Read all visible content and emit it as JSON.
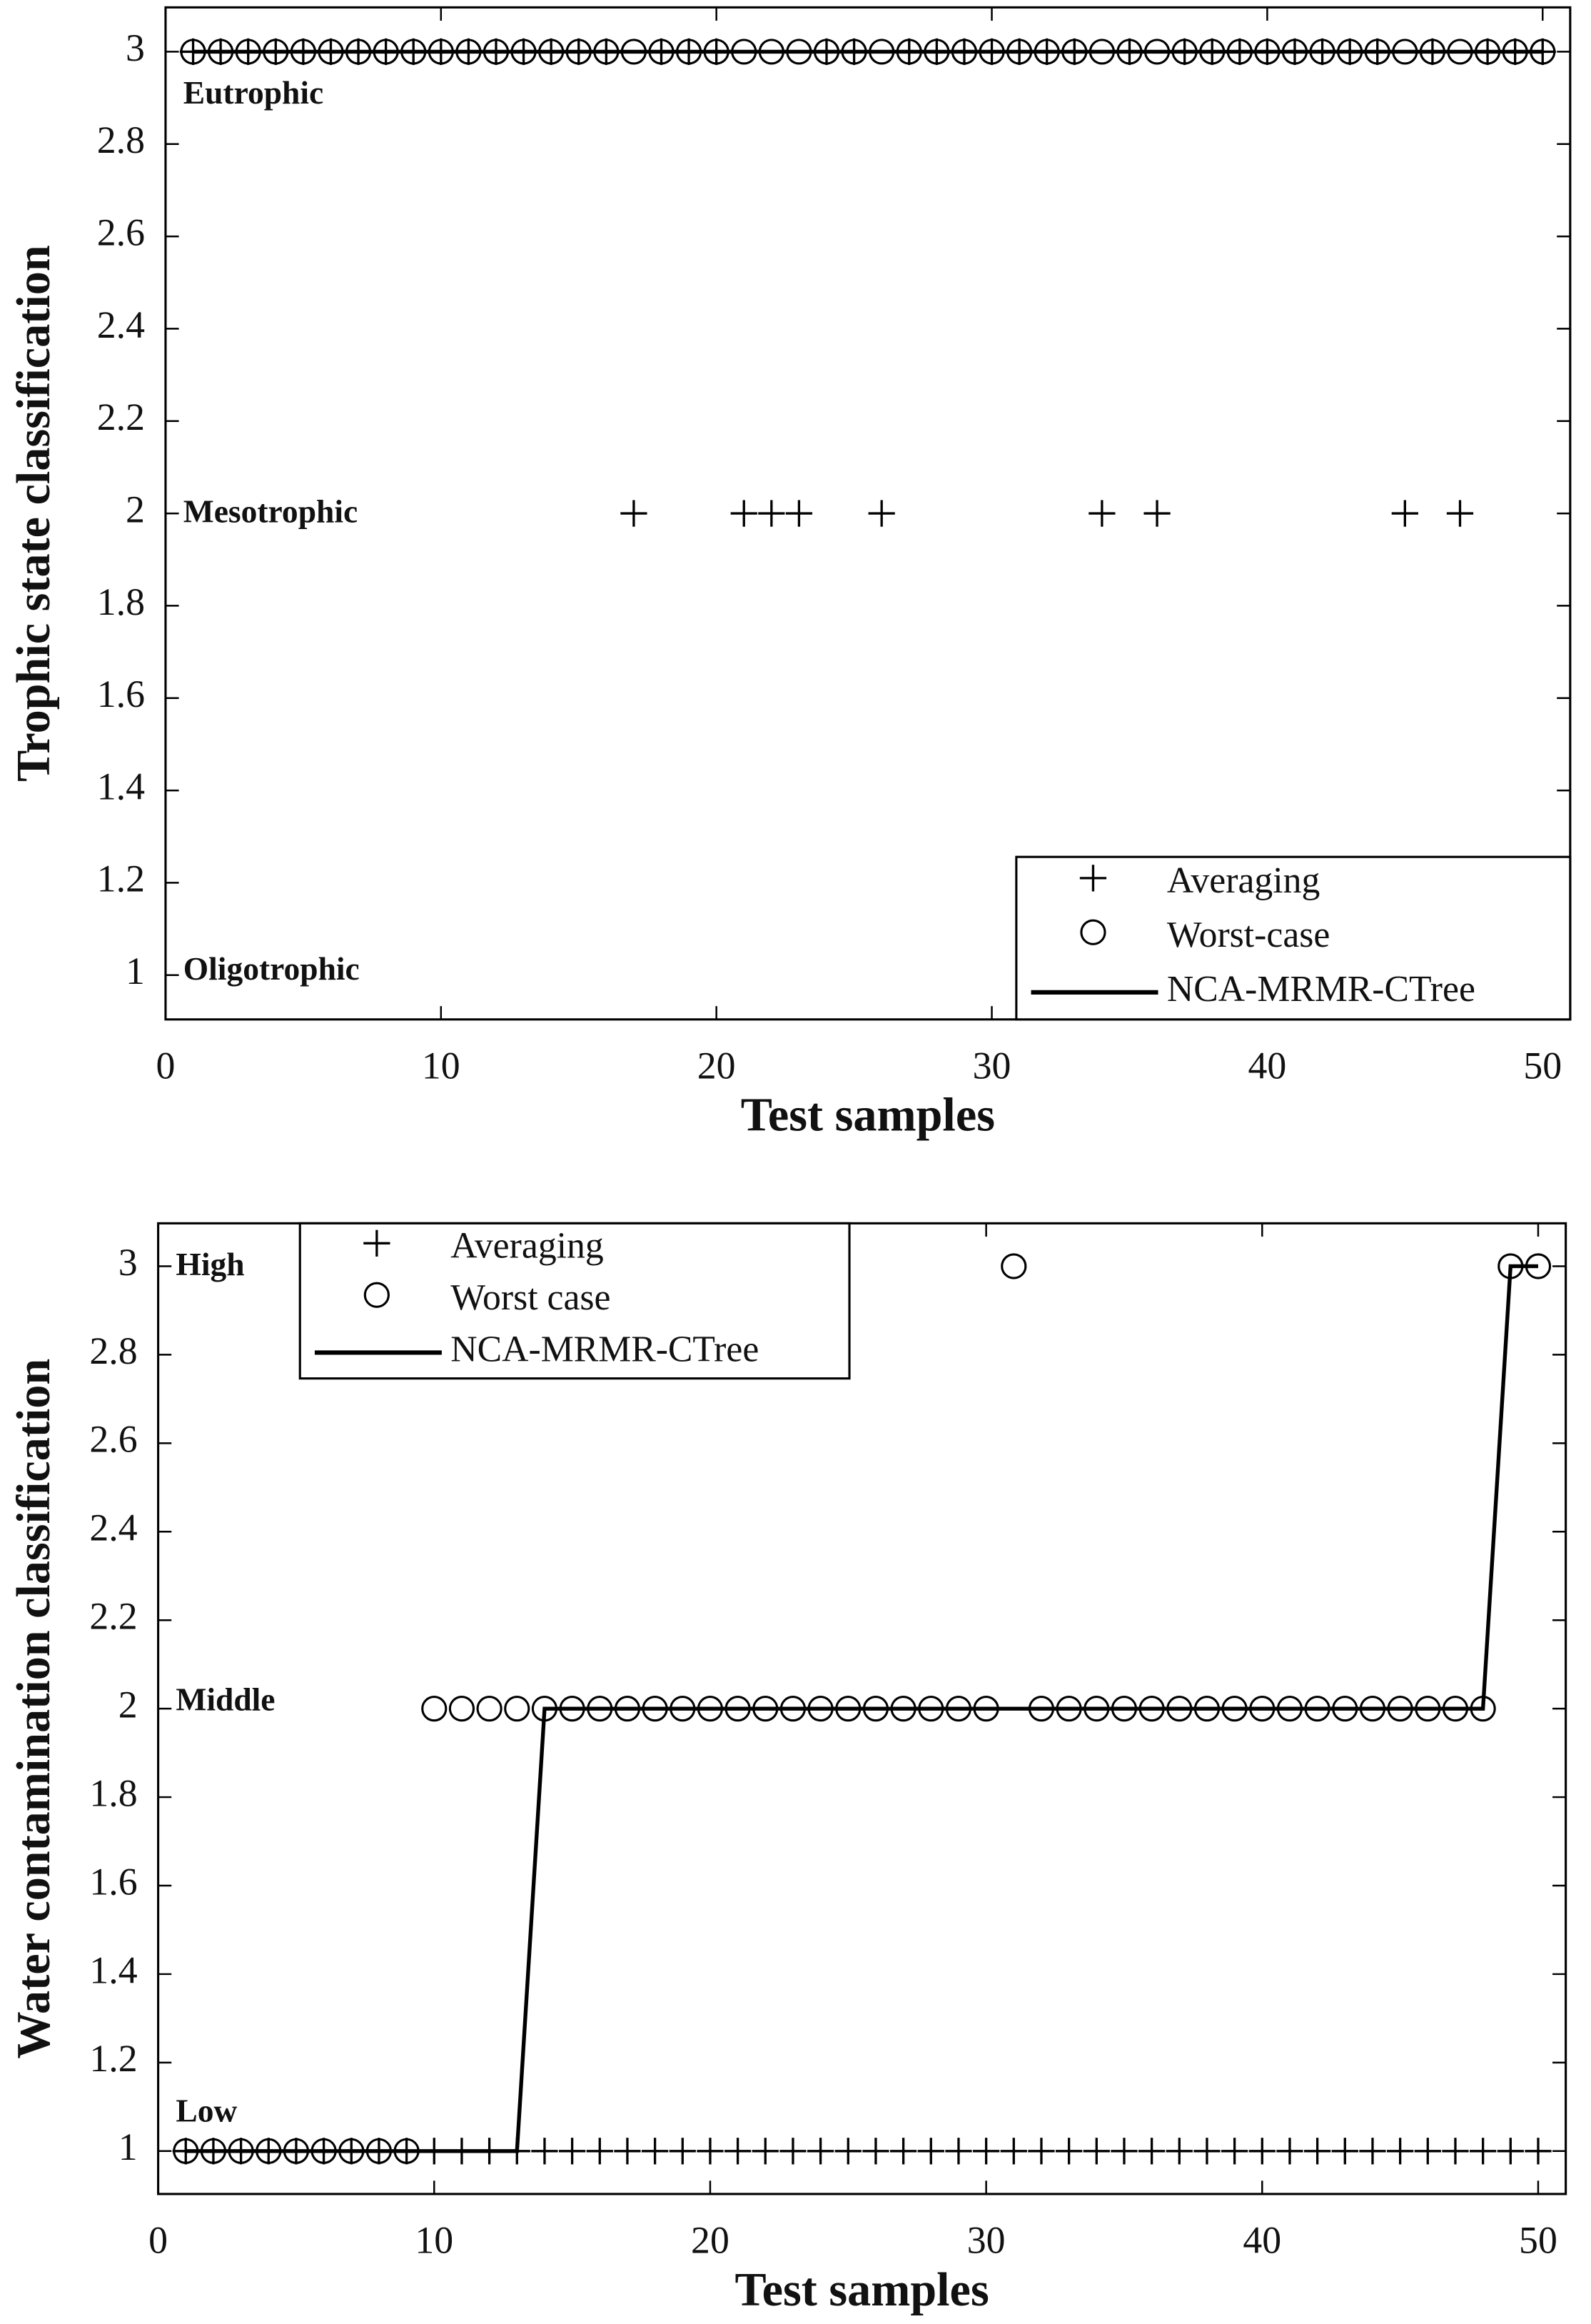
{
  "chart_data": [
    {
      "type": "line",
      "xlabel": "Test samples",
      "ylabel": "Trophic state classification",
      "annotations": [
        "Eutrophic",
        "Mesotrophic",
        "Oligotrophic"
      ],
      "x": [
        1,
        2,
        3,
        4,
        5,
        6,
        7,
        8,
        9,
        10,
        11,
        12,
        13,
        14,
        15,
        16,
        17,
        18,
        19,
        20,
        21,
        22,
        23,
        24,
        25,
        26,
        27,
        28,
        29,
        30,
        31,
        32,
        33,
        34,
        35,
        36,
        37,
        38,
        39,
        40,
        41,
        42,
        43,
        44,
        45,
        46,
        47,
        48,
        49,
        50
      ],
      "series": [
        {
          "name": "Averaging",
          "marker": "+",
          "color": "#000000",
          "values": [
            3,
            3,
            3,
            3,
            3,
            3,
            3,
            3,
            3,
            3,
            3,
            3,
            3,
            3,
            3,
            3,
            2,
            3,
            3,
            3,
            2,
            2,
            2,
            3,
            3,
            2,
            3,
            3,
            3,
            3,
            3,
            3,
            3,
            2,
            3,
            2,
            3,
            3,
            3,
            3,
            3,
            3,
            3,
            3,
            2,
            3,
            2,
            3,
            3,
            3
          ]
        },
        {
          "name": "Worst-case",
          "marker": "o",
          "color": "#000000",
          "values": [
            3,
            3,
            3,
            3,
            3,
            3,
            3,
            3,
            3,
            3,
            3,
            3,
            3,
            3,
            3,
            3,
            3,
            3,
            3,
            3,
            3,
            3,
            3,
            3,
            3,
            3,
            3,
            3,
            3,
            3,
            3,
            3,
            3,
            3,
            3,
            3,
            3,
            3,
            3,
            3,
            3,
            3,
            3,
            3,
            3,
            3,
            3,
            3,
            3,
            3
          ]
        },
        {
          "name": "NCA-MRMR-CTree",
          "marker": "none",
          "color": "#000000",
          "values": [
            3,
            3,
            3,
            3,
            3,
            3,
            3,
            3,
            3,
            3,
            3,
            3,
            3,
            3,
            3,
            3,
            3,
            3,
            3,
            3,
            3,
            3,
            3,
            3,
            3,
            3,
            3,
            3,
            3,
            3,
            3,
            3,
            3,
            3,
            3,
            3,
            3,
            3,
            3,
            3,
            3,
            3,
            3,
            3,
            3,
            3,
            3,
            3,
            3,
            3
          ]
        }
      ],
      "xlim": [
        0,
        51
      ],
      "xticks": [
        0,
        10,
        20,
        30,
        40,
        50
      ],
      "ylim": [
        0.904,
        3.096
      ],
      "yticks": [
        1,
        1.2,
        1.4,
        1.6,
        1.8,
        2,
        2.2,
        2.4,
        2.6,
        2.8,
        3
      ],
      "legend": "lower right"
    },
    {
      "type": "line",
      "xlabel": "Test samples",
      "ylabel": "Water contamination classification",
      "annotations": [
        "High",
        "Middle",
        "Low"
      ],
      "x": [
        1,
        2,
        3,
        4,
        5,
        6,
        7,
        8,
        9,
        10,
        11,
        12,
        13,
        14,
        15,
        16,
        17,
        18,
        19,
        20,
        21,
        22,
        23,
        24,
        25,
        26,
        27,
        28,
        29,
        30,
        31,
        32,
        33,
        34,
        35,
        36,
        37,
        38,
        39,
        40,
        41,
        42,
        43,
        44,
        45,
        46,
        47,
        48,
        49,
        50
      ],
      "series": [
        {
          "name": "Averaging",
          "marker": "+",
          "color": "#000000",
          "values": [
            1,
            1,
            1,
            1,
            1,
            1,
            1,
            1,
            1,
            1,
            1,
            1,
            1,
            1,
            1,
            1,
            1,
            1,
            1,
            1,
            1,
            1,
            1,
            1,
            1,
            1,
            1,
            1,
            1,
            1,
            1,
            1,
            1,
            1,
            1,
            1,
            1,
            1,
            1,
            1,
            1,
            1,
            1,
            1,
            1,
            1,
            1,
            1,
            1,
            1
          ]
        },
        {
          "name": "Worst case",
          "marker": "o",
          "color": "#000000",
          "values": [
            1,
            1,
            1,
            1,
            1,
            1,
            1,
            1,
            1,
            2,
            2,
            2,
            2,
            2,
            2,
            2,
            2,
            2,
            2,
            2,
            2,
            2,
            2,
            2,
            2,
            2,
            2,
            2,
            2,
            2,
            3,
            2,
            2,
            2,
            2,
            2,
            2,
            2,
            2,
            2,
            2,
            2,
            2,
            2,
            2,
            2,
            2,
            2,
            3,
            3
          ]
        },
        {
          "name": "NCA-MRMR-CTree",
          "marker": "none",
          "color": "#000000",
          "values": [
            1,
            1,
            1,
            1,
            1,
            1,
            1,
            1,
            1,
            1,
            1,
            1,
            1,
            2,
            2,
            2,
            2,
            2,
            2,
            2,
            2,
            2,
            2,
            2,
            2,
            2,
            2,
            2,
            2,
            2,
            2,
            2,
            2,
            2,
            2,
            2,
            2,
            2,
            2,
            2,
            2,
            2,
            2,
            2,
            2,
            2,
            2,
            2,
            3,
            3
          ]
        }
      ],
      "xlim": [
        0,
        51
      ],
      "xticks": [
        0,
        10,
        20,
        30,
        40,
        50
      ],
      "ylim": [
        0.903,
        3.097
      ],
      "yticks": [
        1,
        1.2,
        1.4,
        1.6,
        1.8,
        2,
        2.2,
        2.4,
        2.6,
        2.8,
        3
      ],
      "legend": "upper left"
    }
  ]
}
